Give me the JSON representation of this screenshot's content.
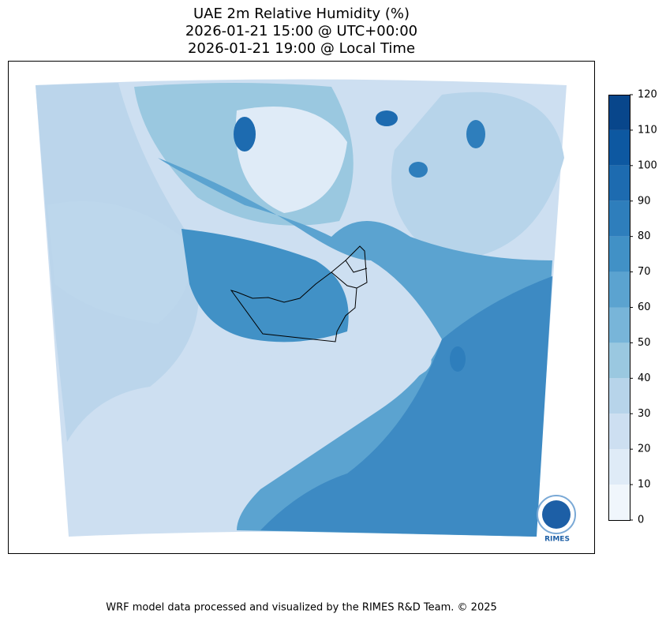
{
  "title": [
    "UAE 2m Relative Humidity (%)",
    "2026-01-21 15:00 @ UTC+00:00",
    "2026-01-21 19:00 @ Local Time"
  ],
  "colorbar": {
    "lim": [
      0,
      120
    ],
    "ticks": [
      0,
      10,
      20,
      30,
      40,
      50,
      60,
      70,
      80,
      90,
      100,
      110,
      120
    ],
    "colors": [
      "#f0f6fc",
      "#dfebf7",
      "#cddff1",
      "#b7d4ea",
      "#9ac8e0",
      "#78b5d9",
      "#5ba3d0",
      "#4191c6",
      "#2e7ebc",
      "#1d6bb0",
      "#0d58a1",
      "#08468b"
    ]
  },
  "logo": "RIMES",
  "footer": "WRF model data processed and visualized by the RIMES R&D Team. © 2025"
}
